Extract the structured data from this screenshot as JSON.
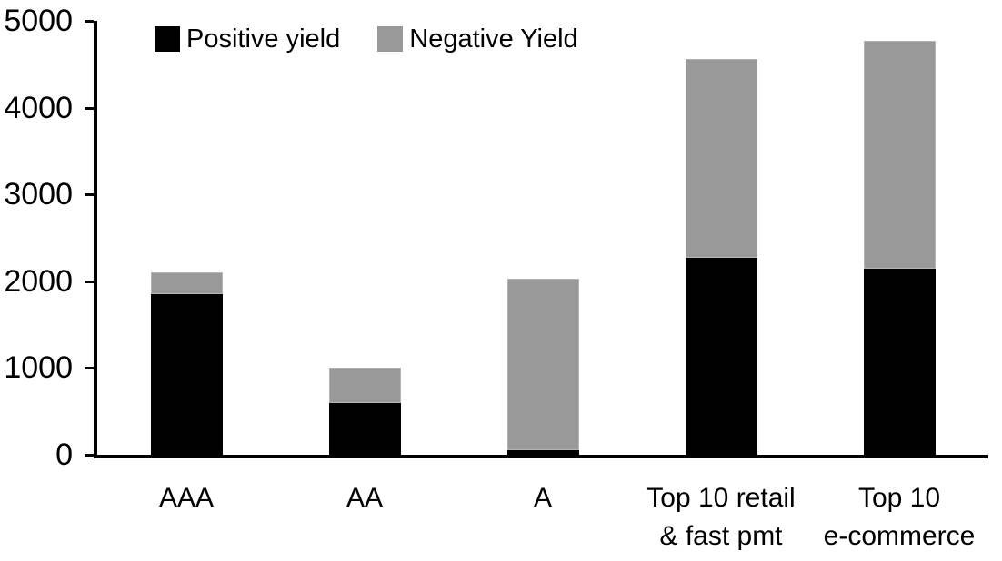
{
  "chart_data": {
    "type": "bar",
    "stacked": true,
    "title": "",
    "xlabel": "",
    "ylabel": "",
    "categories": [
      "AAA",
      "AA",
      "A",
      "Top 10 retail & fast pmt",
      "Top 10 e-commerce"
    ],
    "categories_display": [
      [
        "AAA"
      ],
      [
        "AA"
      ],
      [
        "A"
      ],
      [
        "Top 10 retail",
        "& fast pmt"
      ],
      [
        "Top 10",
        "e-commerce"
      ]
    ],
    "series": [
      {
        "name": "Positive yield",
        "color": "#000000",
        "values": [
          1850,
          600,
          50,
          2270,
          2140
        ]
      },
      {
        "name": "Negative Yield",
        "color": "#999999",
        "values": [
          250,
          400,
          1980,
          2290,
          2630
        ]
      }
    ],
    "totals": [
      2100,
      1000,
      2030,
      4560,
      4770
    ],
    "ylim": [
      0,
      5000
    ],
    "yticks": [
      0,
      1000,
      2000,
      3000,
      4000,
      5000
    ],
    "grid": false,
    "legend_position": "top-left",
    "axis_color": "#000000",
    "background_color": "#ffffff"
  }
}
